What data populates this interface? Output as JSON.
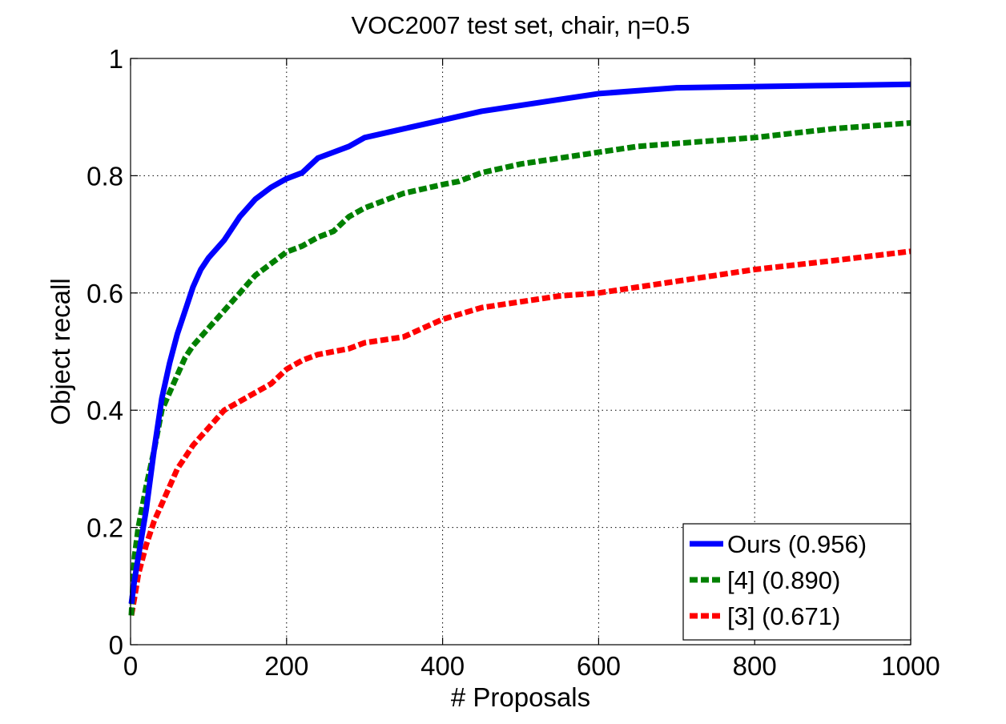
{
  "chart_data": {
    "type": "line",
    "title": "VOC2007 test set, chair, η=0.5",
    "xlabel": "# Proposals",
    "ylabel": "Object recall",
    "xlim": [
      0,
      1000
    ],
    "ylim": [
      0,
      1
    ],
    "xticks": [
      0,
      200,
      400,
      600,
      800,
      1000
    ],
    "yticks": [
      0,
      0.2,
      0.4,
      0.6,
      0.8,
      1
    ],
    "xtick_labels": [
      "0",
      "200",
      "400",
      "600",
      "800",
      "1000"
    ],
    "ytick_labels": [
      "0",
      "0.2",
      "0.4",
      "0.6",
      "0.8",
      "1"
    ],
    "grid": true,
    "legend_position": "bottom-right",
    "series": [
      {
        "name": "Ours (0.956)",
        "color": "#0000ff",
        "style": "solid",
        "x": [
          1,
          5,
          10,
          20,
          30,
          40,
          50,
          60,
          70,
          80,
          90,
          100,
          120,
          140,
          160,
          180,
          200,
          220,
          240,
          260,
          280,
          300,
          350,
          400,
          450,
          500,
          550,
          600,
          650,
          700,
          800,
          900,
          1000
        ],
        "y": [
          0.07,
          0.11,
          0.15,
          0.23,
          0.33,
          0.42,
          0.48,
          0.53,
          0.57,
          0.61,
          0.64,
          0.66,
          0.69,
          0.73,
          0.76,
          0.78,
          0.795,
          0.805,
          0.83,
          0.84,
          0.85,
          0.865,
          0.88,
          0.895,
          0.91,
          0.92,
          0.93,
          0.94,
          0.945,
          0.95,
          0.952,
          0.954,
          0.956
        ]
      },
      {
        "name": "[4] (0.890)",
        "color": "#008000",
        "style": "dashed",
        "x": [
          1,
          5,
          10,
          20,
          30,
          40,
          50,
          60,
          70,
          80,
          100,
          120,
          140,
          160,
          180,
          200,
          220,
          240,
          260,
          280,
          300,
          350,
          400,
          420,
          450,
          500,
          550,
          600,
          650,
          700,
          800,
          900,
          1000
        ],
        "y": [
          0.05,
          0.15,
          0.2,
          0.27,
          0.33,
          0.4,
          0.43,
          0.46,
          0.49,
          0.51,
          0.54,
          0.57,
          0.6,
          0.63,
          0.65,
          0.67,
          0.68,
          0.695,
          0.705,
          0.73,
          0.745,
          0.77,
          0.785,
          0.79,
          0.805,
          0.82,
          0.83,
          0.84,
          0.85,
          0.855,
          0.865,
          0.88,
          0.89
        ]
      },
      {
        "name": "[3] (0.671)",
        "color": "#ff0000",
        "style": "dashed",
        "x": [
          1,
          5,
          10,
          20,
          30,
          40,
          50,
          60,
          70,
          80,
          100,
          120,
          140,
          160,
          180,
          200,
          220,
          240,
          260,
          280,
          300,
          350,
          400,
          450,
          500,
          550,
          600,
          650,
          700,
          800,
          900,
          1000
        ],
        "y": [
          0.05,
          0.08,
          0.12,
          0.17,
          0.21,
          0.24,
          0.27,
          0.3,
          0.32,
          0.34,
          0.37,
          0.4,
          0.415,
          0.43,
          0.445,
          0.47,
          0.485,
          0.495,
          0.5,
          0.505,
          0.515,
          0.525,
          0.555,
          0.575,
          0.585,
          0.595,
          0.6,
          0.61,
          0.62,
          0.64,
          0.655,
          0.671
        ]
      }
    ]
  }
}
